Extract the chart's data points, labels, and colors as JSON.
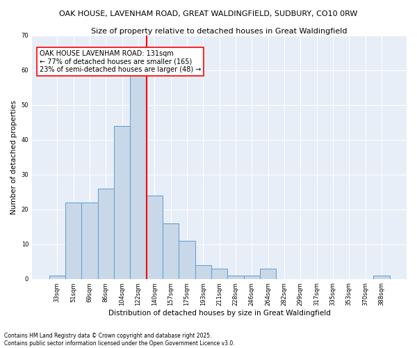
{
  "title1": "OAK HOUSE, LAVENHAM ROAD, GREAT WALDINGFIELD, SUDBURY, CO10 0RW",
  "title2": "Size of property relative to detached houses in Great Waldingfield",
  "xlabel": "Distribution of detached houses by size in Great Waldingfield",
  "ylabel": "Number of detached properties",
  "bar_labels": [
    "33sqm",
    "51sqm",
    "69sqm",
    "86sqm",
    "104sqm",
    "122sqm",
    "140sqm",
    "157sqm",
    "175sqm",
    "193sqm",
    "211sqm",
    "228sqm",
    "246sqm",
    "264sqm",
    "282sqm",
    "299sqm",
    "317sqm",
    "335sqm",
    "353sqm",
    "370sqm",
    "388sqm"
  ],
  "bar_values": [
    1,
    22,
    22,
    26,
    44,
    59,
    24,
    16,
    11,
    4,
    3,
    1,
    1,
    3,
    0,
    0,
    0,
    0,
    0,
    0,
    1
  ],
  "bar_color": "#c8d8e8",
  "bar_edge_color": "#5b9bd5",
  "vline_color": "red",
  "vline_x": 5.5,
  "annotation_text": "OAK HOUSE LAVENHAM ROAD: 131sqm\n← 77% of detached houses are smaller (165)\n23% of semi-detached houses are larger (48) →",
  "annotation_box_color": "white",
  "annotation_box_edge": "red",
  "ylim": [
    0,
    70
  ],
  "yticks": [
    0,
    10,
    20,
    30,
    40,
    50,
    60,
    70
  ],
  "background_color": "#e8eef7",
  "footer": "Contains HM Land Registry data © Crown copyright and database right 2025.\nContains public sector information licensed under the Open Government Licence v3.0.",
  "grid_color": "white",
  "fig_width": 6.0,
  "fig_height": 5.0,
  "dpi": 100
}
